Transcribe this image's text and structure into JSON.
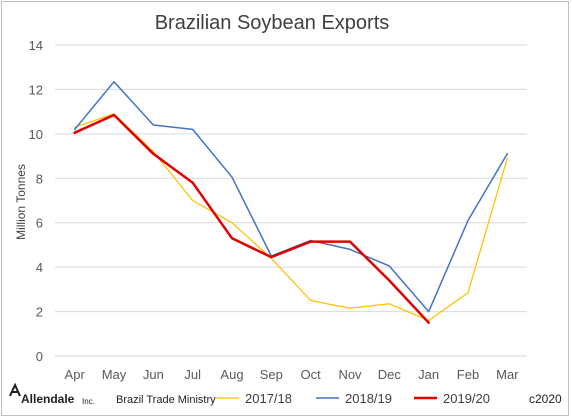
{
  "chart_data": {
    "type": "line",
    "title": "Brazilian Soybean Exports",
    "ylabel": "Million Tonnes",
    "xlabel": "",
    "categories": [
      "Apr",
      "May",
      "Jun",
      "Jul",
      "Aug",
      "Sep",
      "Oct",
      "Nov",
      "Dec",
      "Jan",
      "Feb",
      "Mar"
    ],
    "ylim": [
      0,
      14
    ],
    "yticks": [
      0,
      2,
      4,
      6,
      8,
      10,
      12,
      14
    ],
    "grid": true,
    "legend_position": "bottom",
    "series": [
      {
        "name": "2017/18",
        "color": "#ffc000",
        "values": [
          10.3,
          10.9,
          9.2,
          7.0,
          6.0,
          4.4,
          2.5,
          2.15,
          2.35,
          1.6,
          2.85,
          8.9
        ]
      },
      {
        "name": "2018/19",
        "color": "#4472c4",
        "values": [
          10.2,
          12.35,
          10.4,
          10.2,
          8.05,
          4.5,
          5.2,
          4.8,
          4.05,
          2.0,
          6.1,
          9.1
        ]
      },
      {
        "name": "2019/20",
        "color": "#e00000",
        "values": [
          10.05,
          10.85,
          9.1,
          7.8,
          5.3,
          4.45,
          5.15,
          5.15,
          3.4,
          1.5,
          null,
          null
        ]
      }
    ]
  },
  "footer": {
    "logo_name": "Allendale",
    "logo_suffix": "Inc.",
    "source": "Brazil Trade Ministry",
    "copyright": "c2020"
  }
}
